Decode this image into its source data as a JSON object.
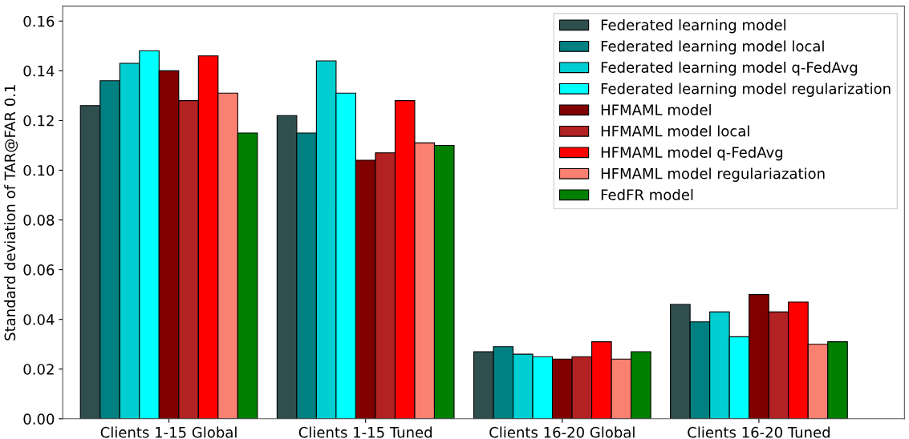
{
  "chart_data": {
    "type": "bar",
    "ylabel": "Standard deviation of TAR@FAR 0.1",
    "categories": [
      "Clients 1-15 Global",
      "Clients 1-15 Tuned",
      "Clients 16-20 Global",
      "Clients 16-20 Tuned"
    ],
    "ylim": [
      0,
      0.166
    ],
    "yticks": [
      {
        "value": 0,
        "label": "0.00"
      },
      {
        "value": 0.02,
        "label": "0.02"
      },
      {
        "value": 0.04,
        "label": "0.04"
      },
      {
        "value": 0.06,
        "label": "0.06"
      },
      {
        "value": 0.08,
        "label": "0.08"
      },
      {
        "value": 0.1,
        "label": "0.10"
      },
      {
        "value": 0.12,
        "label": "0.12"
      },
      {
        "value": 0.14,
        "label": "0.14"
      },
      {
        "value": 0.16,
        "label": "0.16"
      }
    ],
    "grid": false,
    "legend": "top right",
    "series": [
      {
        "name": "Federated learning model",
        "color": "#2f4f4f",
        "values": [
          0.126,
          0.122,
          0.027,
          0.046
        ]
      },
      {
        "name": "Federated learning model local",
        "color": "#008080",
        "values": [
          0.136,
          0.115,
          0.029,
          0.039
        ]
      },
      {
        "name": "Federated learning model q-FedAvg",
        "color": "#00ced1",
        "values": [
          0.143,
          0.144,
          0.026,
          0.043
        ]
      },
      {
        "name": "Federated learning model regularization",
        "color": "#00ffff",
        "values": [
          0.148,
          0.131,
          0.025,
          0.033
        ]
      },
      {
        "name": "HFMAML model",
        "color": "#800000",
        "values": [
          0.14,
          0.104,
          0.024,
          0.05
        ]
      },
      {
        "name": "HFMAML model local",
        "color": "#b22222",
        "values": [
          0.128,
          0.107,
          0.025,
          0.043
        ]
      },
      {
        "name": "HFMAML model q-FedAvg",
        "color": "#ff0000",
        "values": [
          0.146,
          0.128,
          0.031,
          0.047
        ]
      },
      {
        "name": "HFMAML model regulariazation",
        "color": "#fa8072",
        "values": [
          0.131,
          0.111,
          0.024,
          0.03
        ]
      },
      {
        "name": "FedFR model",
        "color": "#008000",
        "values": [
          0.115,
          0.11,
          0.027,
          0.031
        ]
      }
    ]
  }
}
